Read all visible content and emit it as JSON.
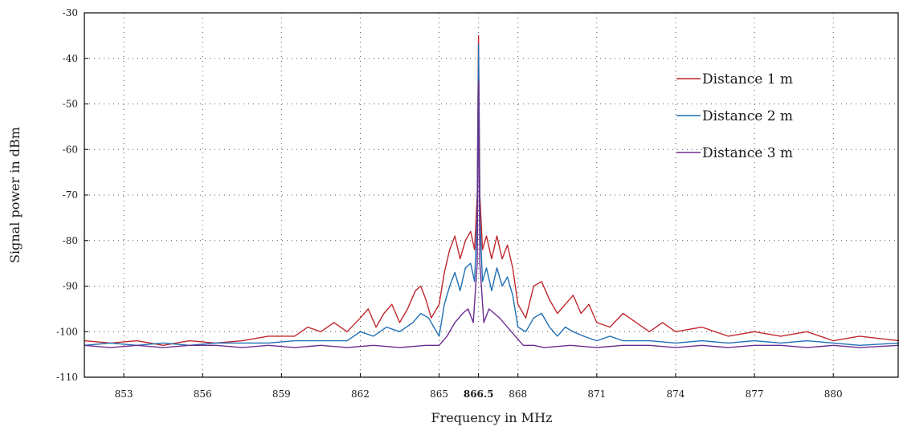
{
  "chart_data": {
    "type": "line",
    "xlabel": "Frequency in MHz",
    "ylabel": "Signal power in dBm",
    "xlim": [
      851.5,
      882.5
    ],
    "ylim": [
      -110,
      -30
    ],
    "x_ticks": [
      {
        "value": 853,
        "label": "853",
        "bold": false
      },
      {
        "value": 856,
        "label": "856",
        "bold": false
      },
      {
        "value": 859,
        "label": "859",
        "bold": false
      },
      {
        "value": 862,
        "label": "862",
        "bold": false
      },
      {
        "value": 865,
        "label": "865",
        "bold": false
      },
      {
        "value": 866.5,
        "label": "866.5",
        "bold": true
      },
      {
        "value": 868,
        "label": "868",
        "bold": false
      },
      {
        "value": 871,
        "label": "871",
        "bold": false
      },
      {
        "value": 874,
        "label": "874",
        "bold": false
      },
      {
        "value": 877,
        "label": "877",
        "bold": false
      },
      {
        "value": 880,
        "label": "880",
        "bold": false
      }
    ],
    "y_ticks": [
      {
        "value": -30,
        "label": "-30"
      },
      {
        "value": -40,
        "label": "-40"
      },
      {
        "value": -50,
        "label": "-50"
      },
      {
        "value": -60,
        "label": "-60"
      },
      {
        "value": -70,
        "label": "-70"
      },
      {
        "value": -80,
        "label": "-80"
      },
      {
        "value": -90,
        "label": "-90"
      },
      {
        "value": -100,
        "label": "-100"
      },
      {
        "value": -110,
        "label": "-110"
      }
    ],
    "grid": true,
    "legend_position": "top-right",
    "series": [
      {
        "name": "Distance 1 m",
        "color": "#c0272d",
        "x": [
          851.5,
          852.5,
          853.5,
          854.5,
          855.5,
          856.5,
          857.5,
          858.5,
          859.5,
          860.0,
          860.5,
          861.0,
          861.5,
          862.0,
          862.3,
          862.6,
          862.9,
          863.2,
          863.5,
          863.8,
          864.1,
          864.3,
          864.5,
          864.7,
          865.0,
          865.2,
          865.4,
          865.6,
          865.8,
          866.0,
          866.2,
          866.35,
          866.45,
          866.5,
          866.55,
          866.65,
          866.8,
          867.0,
          867.2,
          867.4,
          867.6,
          867.8,
          868.0,
          868.3,
          868.6,
          868.9,
          869.2,
          869.5,
          869.8,
          870.1,
          870.4,
          870.7,
          871.0,
          871.5,
          872.0,
          872.5,
          873.0,
          873.5,
          874.0,
          875.0,
          876.0,
          877.0,
          878.0,
          879.0,
          880.0,
          881.0,
          882.5
        ],
        "y": [
          -102,
          -102.5,
          -102,
          -103,
          -102,
          -102.5,
          -102,
          -101,
          -101,
          -99,
          -100,
          -98,
          -100,
          -97,
          -95,
          -99,
          -96,
          -94,
          -98,
          -95,
          -91,
          -90,
          -93,
          -97,
          -94,
          -87,
          -82,
          -79,
          -84,
          -80,
          -78,
          -82,
          -70,
          -35,
          -70,
          -82,
          -79,
          -84,
          -79,
          -84,
          -81,
          -86,
          -94,
          -97,
          -90,
          -89,
          -93,
          -96,
          -94,
          -92,
          -96,
          -94,
          -98,
          -99,
          -96,
          -98,
          -100,
          -98,
          -100,
          -99,
          -101,
          -100,
          -101,
          -100,
          -102,
          -101,
          -102
        ]
      },
      {
        "name": "Distance 2 m",
        "color": "#1f6fb5",
        "x": [
          851.5,
          852.5,
          853.5,
          854.5,
          855.5,
          856.5,
          857.5,
          858.5,
          859.5,
          860.5,
          861.5,
          862.0,
          862.5,
          863.0,
          863.5,
          864.0,
          864.3,
          864.6,
          865.0,
          865.2,
          865.4,
          865.6,
          865.8,
          866.0,
          866.2,
          866.35,
          866.45,
          866.5,
          866.55,
          866.65,
          866.8,
          867.0,
          867.2,
          867.4,
          867.6,
          867.8,
          868.0,
          868.3,
          868.6,
          868.9,
          869.2,
          869.5,
          869.8,
          870.1,
          870.5,
          871.0,
          871.5,
          872.0,
          873.0,
          874.0,
          875.0,
          876.0,
          877.0,
          878.0,
          879.0,
          880.0,
          881.0,
          882.5
        ],
        "y": [
          -103,
          -102.5,
          -103,
          -102.5,
          -103,
          -102.5,
          -102.5,
          -102.5,
          -102,
          -102,
          -102,
          -100,
          -101,
          -99,
          -100,
          -98,
          -96,
          -97,
          -101,
          -94,
          -90,
          -87,
          -91,
          -86,
          -85,
          -89,
          -75,
          -37,
          -75,
          -89,
          -86,
          -91,
          -86,
          -90,
          -88,
          -92,
          -99,
          -100,
          -97,
          -96,
          -99,
          -101,
          -99,
          -100,
          -101,
          -102,
          -101,
          -102,
          -102,
          -102.5,
          -102,
          -102.5,
          -102,
          -102.5,
          -102,
          -102.5,
          -103,
          -102.5
        ]
      },
      {
        "name": "Distance 3 m",
        "color": "#6b2d8f",
        "x": [
          851.5,
          852.5,
          853.5,
          854.5,
          855.5,
          856.5,
          857.5,
          858.5,
          859.5,
          860.5,
          861.5,
          862.5,
          863.5,
          864.5,
          865.0,
          865.3,
          865.6,
          865.9,
          866.1,
          866.3,
          866.45,
          866.5,
          866.55,
          866.7,
          866.9,
          867.1,
          867.3,
          867.6,
          867.9,
          868.2,
          868.6,
          869.0,
          870.0,
          871.0,
          872.0,
          873.0,
          874.0,
          875.0,
          876.0,
          877.0,
          878.0,
          879.0,
          880.0,
          881.0,
          882.5
        ],
        "y": [
          -103,
          -103.5,
          -103,
          -103.5,
          -103,
          -103,
          -103.5,
          -103,
          -103.5,
          -103,
          -103.5,
          -103,
          -103.5,
          -103,
          -103,
          -101,
          -98,
          -96,
          -95,
          -98,
          -85,
          -45,
          -85,
          -98,
          -95,
          -96,
          -97,
          -99,
          -101,
          -103,
          -103,
          -103.5,
          -103,
          -103.5,
          -103,
          -103,
          -103.5,
          -103,
          -103.5,
          -103,
          -103,
          -103.5,
          -103,
          -103.5,
          -103
        ]
      }
    ]
  }
}
